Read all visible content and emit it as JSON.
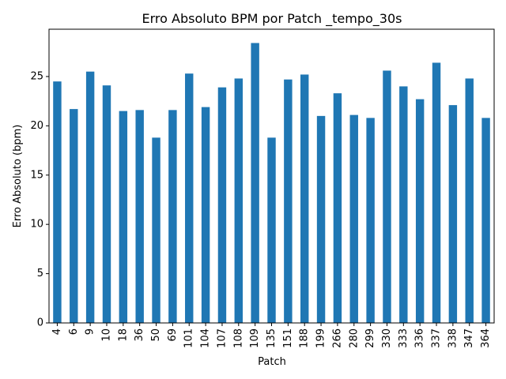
{
  "chart_data": {
    "type": "bar",
    "title": "Erro Absoluto BPM por Patch _tempo_30s",
    "xlabel": "Patch",
    "ylabel": "Erro Absoluto (bpm)",
    "categories": [
      "4",
      "6",
      "9",
      "10",
      "18",
      "36",
      "50",
      "69",
      "101",
      "104",
      "107",
      "108",
      "109",
      "135",
      "151",
      "188",
      "199",
      "266",
      "280",
      "299",
      "330",
      "333",
      "336",
      "337",
      "338",
      "347",
      "364"
    ],
    "values": [
      24.5,
      21.7,
      25.5,
      24.1,
      21.5,
      21.6,
      18.8,
      21.6,
      25.3,
      21.9,
      23.9,
      24.8,
      28.4,
      18.8,
      24.7,
      25.2,
      21.0,
      23.3,
      21.1,
      20.8,
      25.6,
      24.0,
      22.7,
      26.4,
      22.1,
      24.8,
      20.8
    ],
    "ylim": [
      0,
      29.8
    ],
    "yticks": [
      0,
      5,
      10,
      15,
      20,
      25
    ],
    "grid": false,
    "bar_color": "#1f77b4"
  }
}
